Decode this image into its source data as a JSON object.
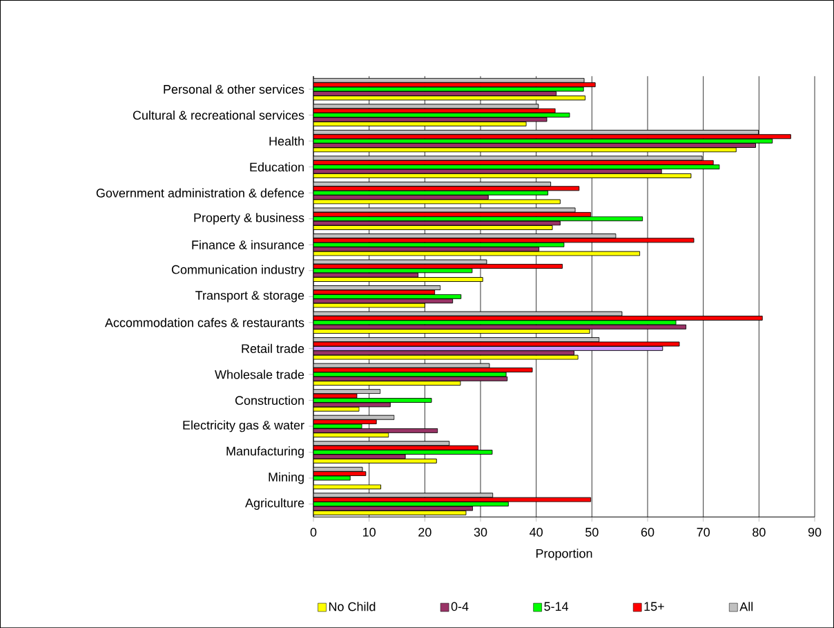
{
  "chart_data": {
    "type": "bar",
    "orientation": "horizontal",
    "xlabel": "Proportion",
    "categories": [
      "Personal & other services",
      "Cultural & recreational services",
      "Health",
      "Education",
      "Government administration & defence",
      "Property & business",
      "Finance & insurance",
      "Communication industry",
      "Transport & storage",
      "Accommodation cafes & restaurants",
      "Retail trade",
      "Wholesale trade",
      "Construction",
      "Electricity gas & water",
      "Manufacturing",
      "Mining",
      "Agriculture"
    ],
    "series": [
      {
        "name": "No Child",
        "color": "#ffff00",
        "values": [
          48.8,
          38.2,
          75.9,
          67.8,
          44.3,
          42.9,
          58.6,
          30.4,
          20.0,
          49.6,
          47.5,
          26.4,
          8.2,
          13.5,
          22.1,
          12.1,
          27.4
        ]
      },
      {
        "name": "0-4",
        "color": "#993366",
        "values": [
          43.6,
          41.9,
          79.4,
          62.5,
          31.4,
          44.3,
          40.5,
          18.8,
          25.0,
          66.9,
          46.8,
          34.8,
          13.8,
          22.3,
          16.5,
          null,
          28.6
        ]
      },
      {
        "name": "5-14",
        "color": "#00ff00",
        "colors": [
          "#00ff00",
          "#00ff00",
          "#00ff00",
          "#00ff00",
          "#00ff00",
          "#00ff00",
          "#00ff00",
          "#00ff00",
          "#00ff00",
          "#00ff00",
          "#cc99ff",
          "#00ff00",
          "#00ff00",
          "#00ff00",
          "#00ff00",
          "#00ff00",
          "#00ff00"
        ],
        "values": [
          48.5,
          46.0,
          82.4,
          72.9,
          42.1,
          59.1,
          45.0,
          28.5,
          26.5,
          65.1,
          62.7,
          34.6,
          21.2,
          8.7,
          32.1,
          6.6,
          35.0
        ]
      },
      {
        "name": "15+",
        "color": "#ff0000",
        "values": [
          50.6,
          43.4,
          85.7,
          71.8,
          47.7,
          49.8,
          68.3,
          44.7,
          21.8,
          80.6,
          65.7,
          39.3,
          7.8,
          11.3,
          29.6,
          9.4,
          49.8
        ]
      },
      {
        "name": "All",
        "color": "#c0c0c0",
        "values": [
          48.6,
          40.4,
          79.9,
          69.8,
          42.6,
          47.0,
          54.3,
          31.1,
          22.8,
          55.4,
          51.3,
          31.6,
          12.0,
          14.5,
          24.4,
          8.8,
          32.2
        ]
      }
    ],
    "xlim": [
      0,
      90
    ],
    "xticks": [
      0,
      10,
      20,
      30,
      40,
      50,
      60,
      70,
      80,
      90
    ],
    "grid": "x",
    "legend": "bottom"
  }
}
